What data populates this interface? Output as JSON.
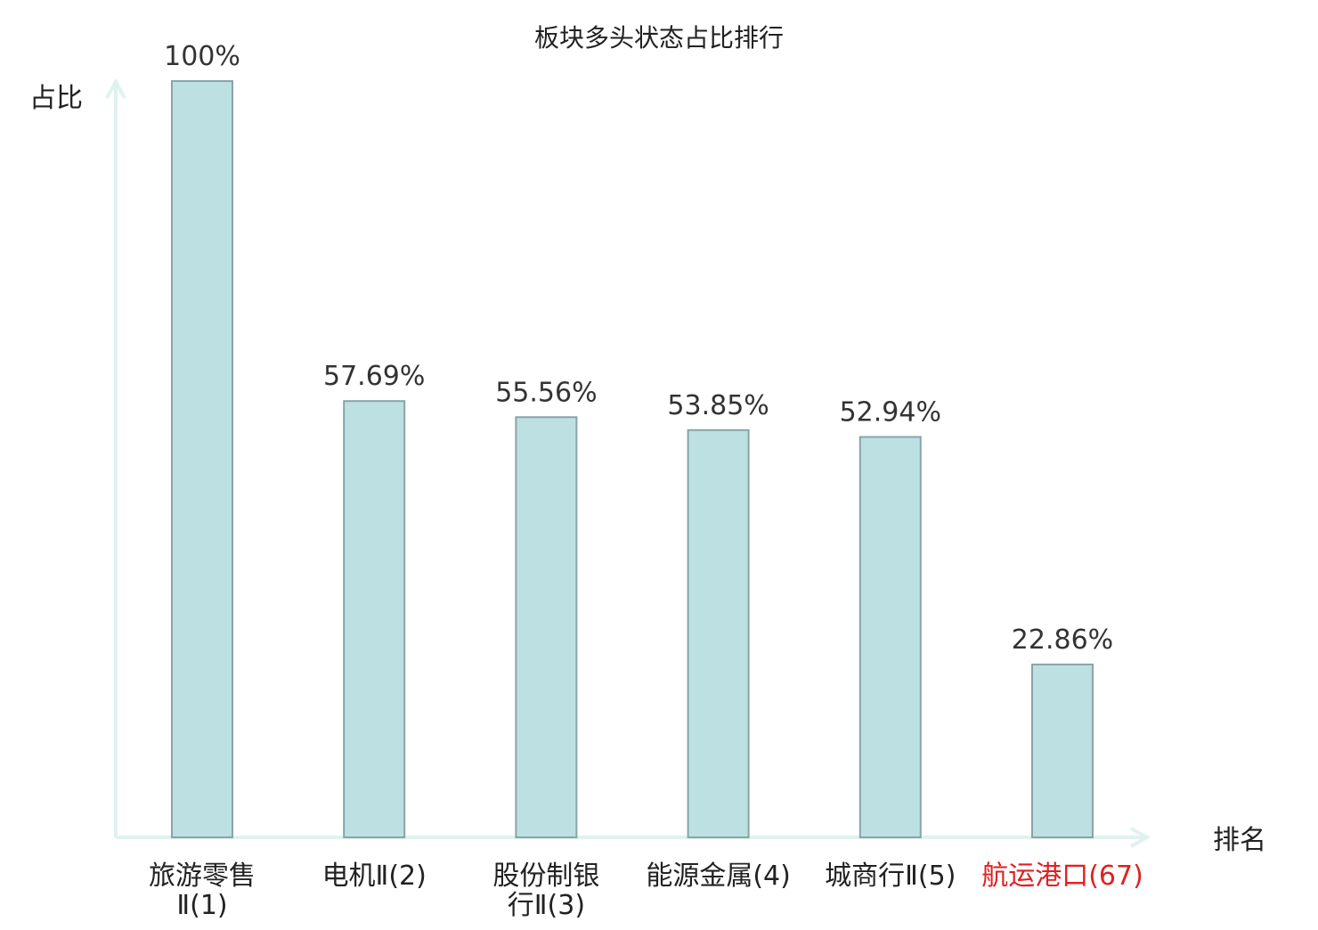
{
  "chart_data": {
    "type": "bar",
    "title": "板块多头状态占比排行",
    "ylabel": "占比",
    "xlabel": "排名",
    "ylim": [
      0,
      100
    ],
    "grid": false,
    "categories": [
      [
        "旅游零售",
        "Ⅱ(1)"
      ],
      [
        "电机Ⅱ(2)"
      ],
      [
        "股份制银",
        "行Ⅱ(3)"
      ],
      [
        "能源金属(4)"
      ],
      [
        "城商行Ⅱ(5)"
      ],
      [
        "航运港口(67)"
      ]
    ],
    "values": [
      100,
      57.69,
      55.56,
      53.85,
      52.94,
      22.86
    ],
    "value_labels": [
      "100%",
      "57.69%",
      "55.56%",
      "53.85%",
      "52.94%",
      "22.86%"
    ],
    "highlight_index": 5,
    "colors": {
      "bar_fill": "#bde0e3",
      "bar_stroke": "#8aa4a8",
      "axis": "#e0f2ef",
      "text": "#333333",
      "highlight_text": "#e02020"
    }
  }
}
